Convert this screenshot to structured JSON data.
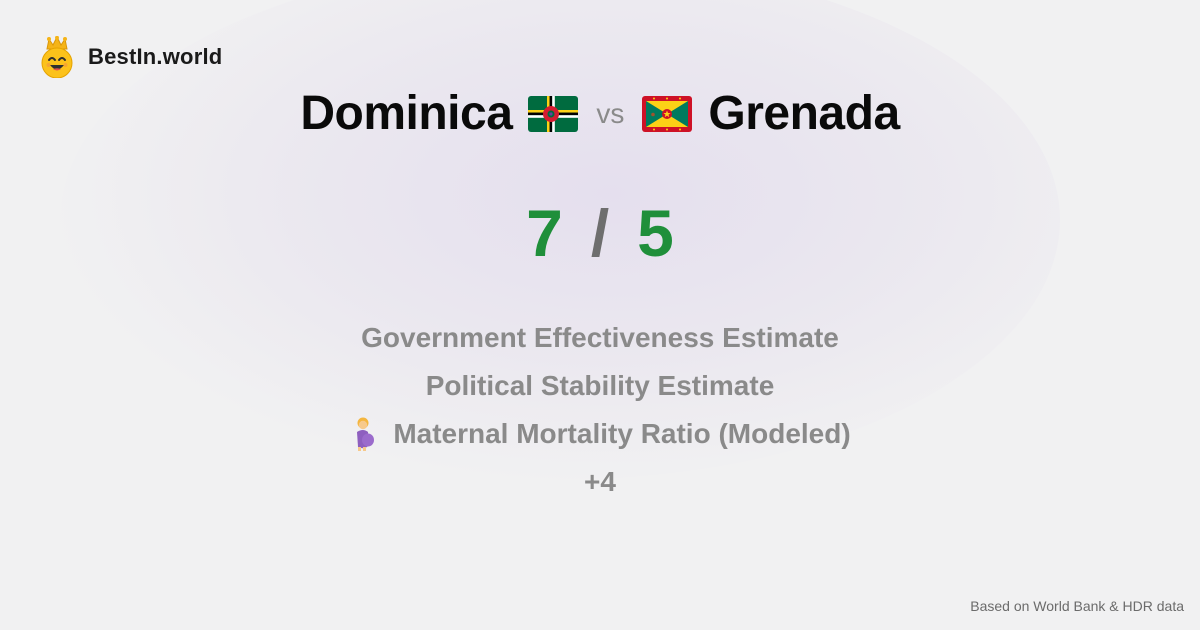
{
  "brand": {
    "name": "BestIn.world",
    "logo_icon": "crowned-smiley-icon"
  },
  "comparison": {
    "country_a": {
      "name": "Dominica",
      "flag_icon": "dominica-flag-icon"
    },
    "vs_label": "vs",
    "country_b": {
      "name": "Grenada",
      "flag_icon": "grenada-flag-icon"
    }
  },
  "score": {
    "a": "7",
    "separator": "/",
    "b": "5"
  },
  "criteria": [
    {
      "label": "Government Effectiveness Estimate",
      "icon": ""
    },
    {
      "label": "Political Stability Estimate",
      "icon": ""
    },
    {
      "label": "Maternal Mortality Ratio (Modeled)",
      "icon": "pregnant-woman-icon"
    }
  ],
  "more_count": "+4",
  "footer": "Based on World Bank & HDR data",
  "colors": {
    "score_green": "#1f8f3a",
    "muted_gray": "#8a8a8a",
    "background": "#f1f1f2"
  }
}
